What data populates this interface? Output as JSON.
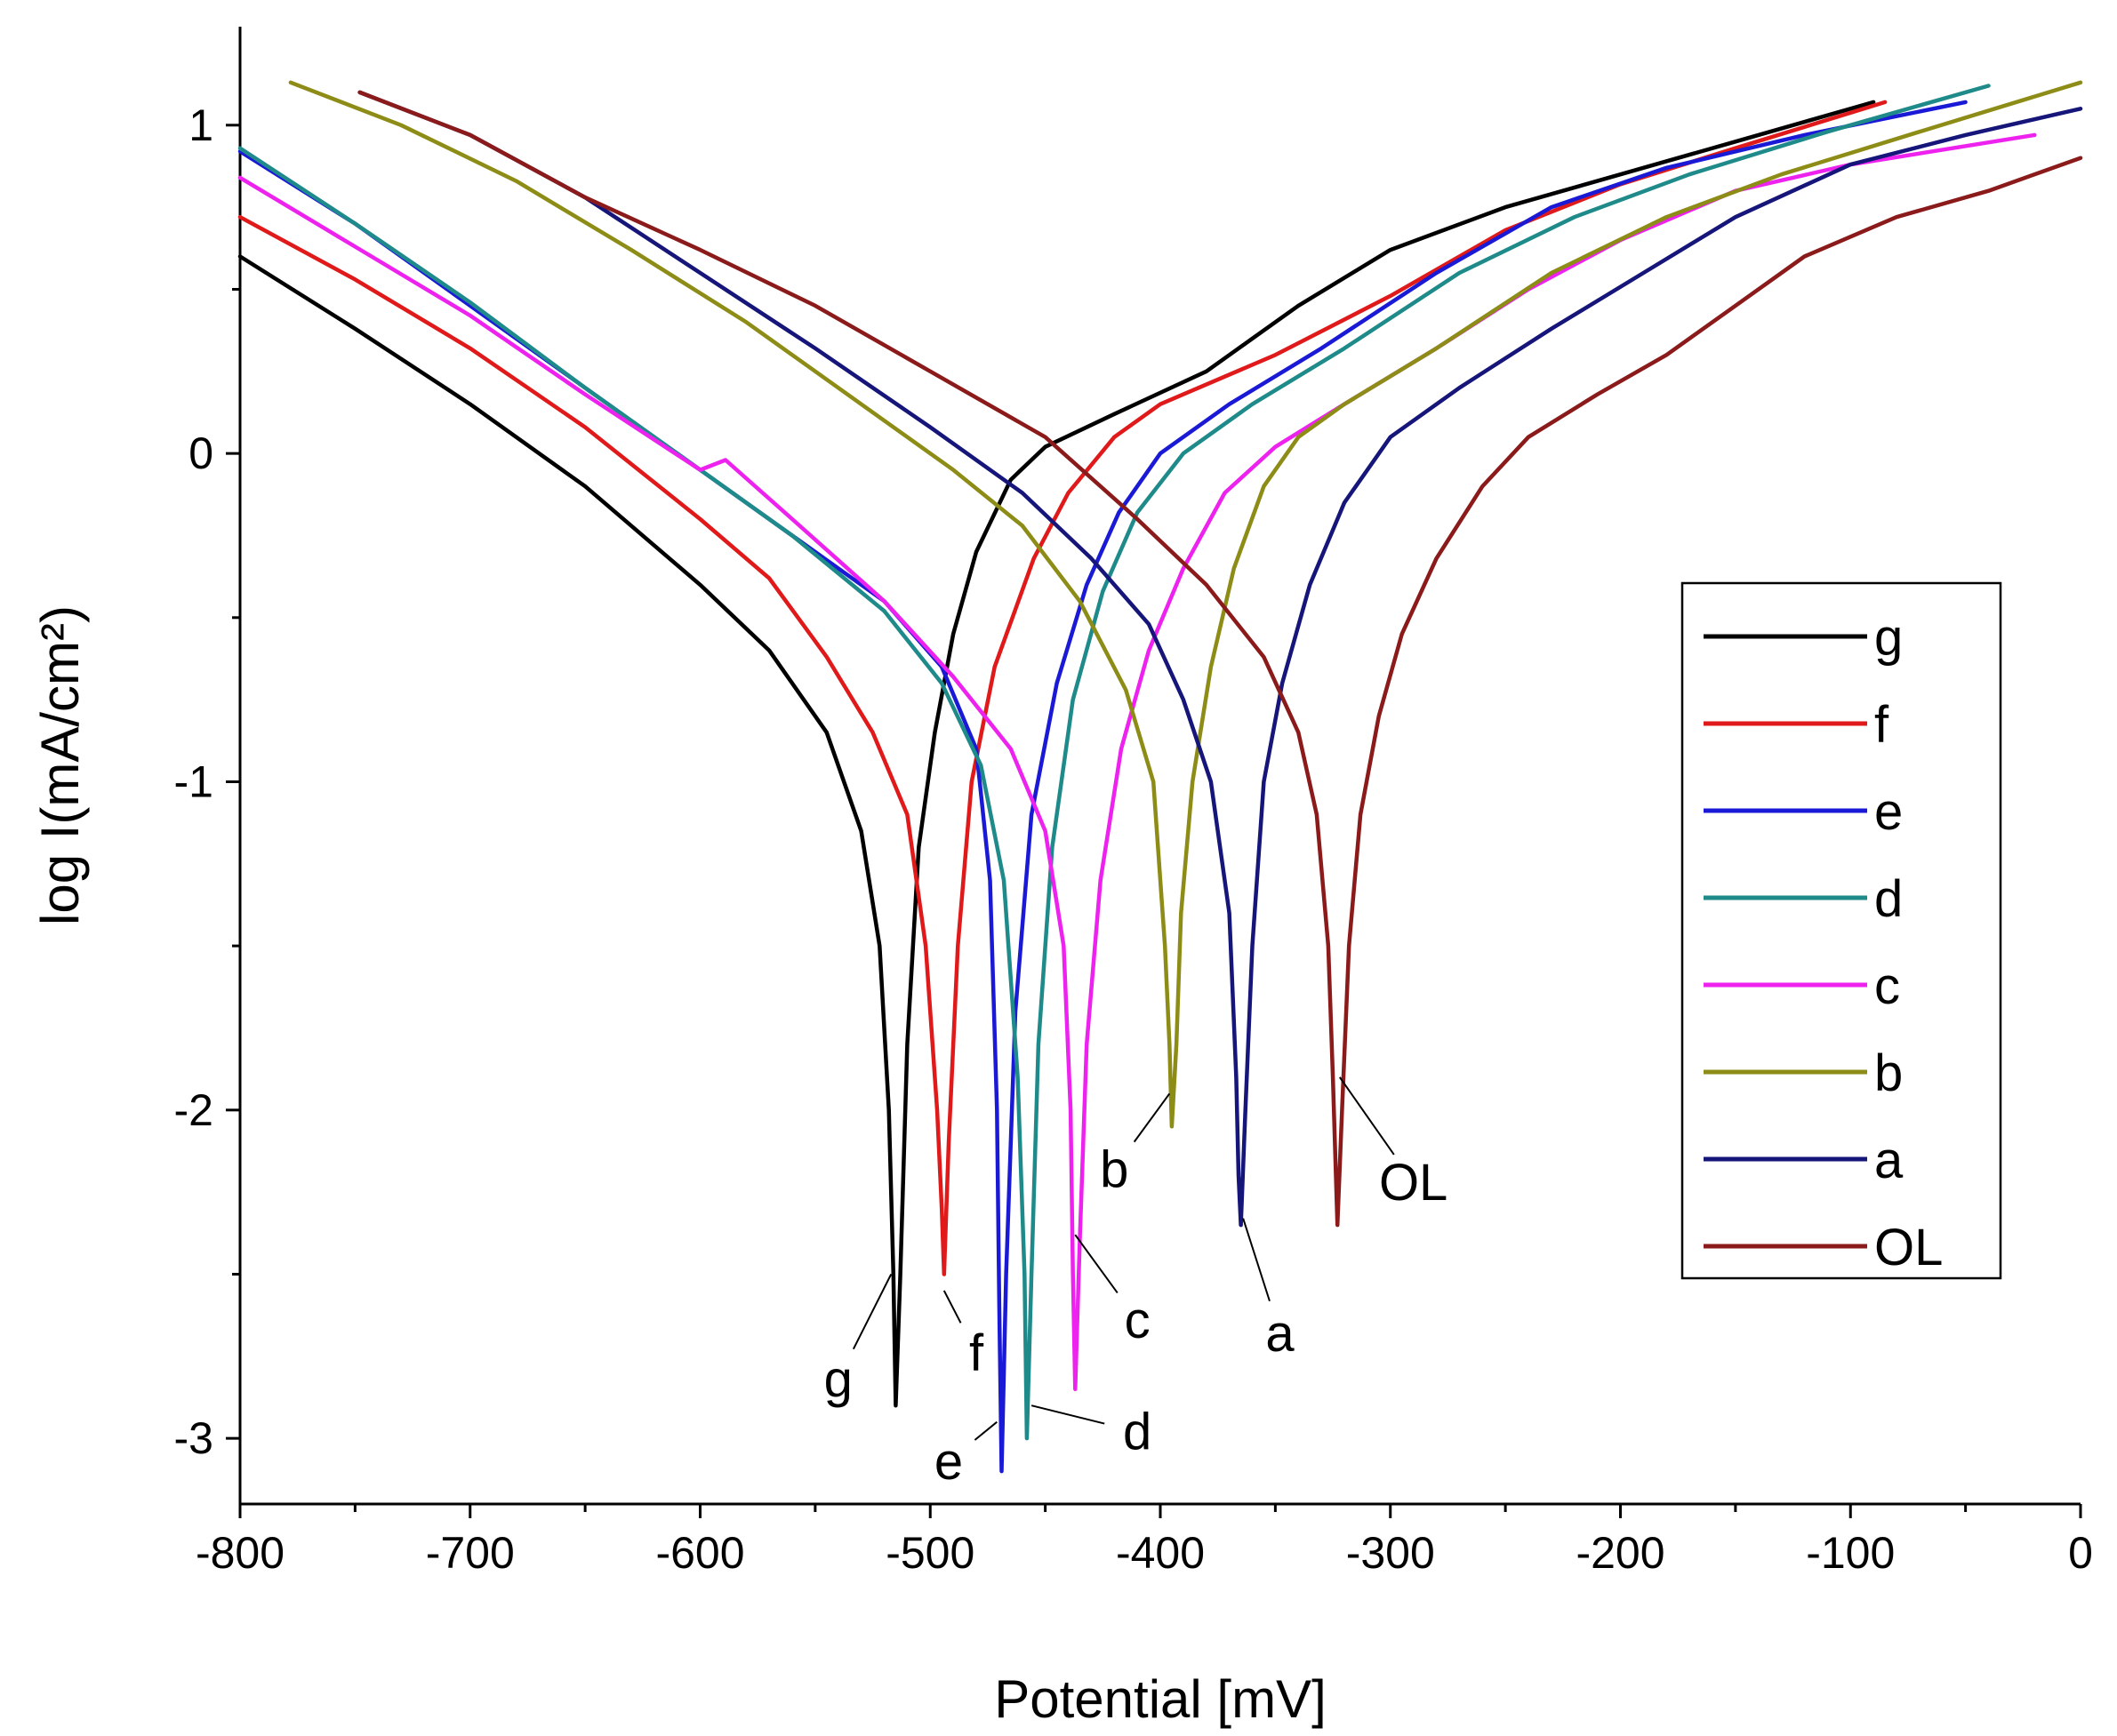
{
  "chart_data": {
    "type": "line",
    "xlabel": "Potential [mV]",
    "ylabel": "log I(mA/cm²)",
    "xlim": [
      -800,
      0
    ],
    "ylim": [
      -3.2,
      1.3
    ],
    "x_ticks": [
      -800,
      -700,
      -600,
      -500,
      -400,
      -300,
      -200,
      -100,
      0
    ],
    "x_tick_labels": [
      "-800",
      "-700",
      "-600",
      "-500",
      "-400",
      "-300",
      "-200",
      "-100",
      "0"
    ],
    "y_ticks": [
      -3,
      -2,
      -1,
      0,
      1
    ],
    "y_tick_labels": [
      "-3",
      "-2",
      "-1",
      "0",
      "1"
    ],
    "grid": false,
    "legend_position": "right",
    "series": [
      {
        "name": "g",
        "color": "#000000",
        "ecorr": -515,
        "min": -2.9,
        "points": [
          [
            -800,
            0.6
          ],
          [
            -750,
            0.38
          ],
          [
            -700,
            0.15
          ],
          [
            -650,
            -0.1
          ],
          [
            -600,
            -0.4
          ],
          [
            -570,
            -0.6
          ],
          [
            -545,
            -0.85
          ],
          [
            -530,
            -1.15
          ],
          [
            -522,
            -1.5
          ],
          [
            -518,
            -2.0
          ],
          [
            -516,
            -2.5
          ],
          [
            -515,
            -2.9
          ],
          [
            -513,
            -2.5
          ],
          [
            -510,
            -1.8
          ],
          [
            -505,
            -1.2
          ],
          [
            -498,
            -0.85
          ],
          [
            -490,
            -0.55
          ],
          [
            -480,
            -0.3
          ],
          [
            -465,
            -0.08
          ],
          [
            -450,
            0.02
          ],
          [
            -420,
            0.12
          ],
          [
            -380,
            0.25
          ],
          [
            -340,
            0.45
          ],
          [
            -300,
            0.62
          ],
          [
            -250,
            0.75
          ],
          [
            -200,
            0.85
          ],
          [
            -150,
            0.95
          ],
          [
            -90,
            1.07
          ]
        ]
      },
      {
        "name": "f",
        "color": "#e01a1a",
        "ecorr": -494,
        "min": -2.5,
        "points": [
          [
            -800,
            0.72
          ],
          [
            -750,
            0.53
          ],
          [
            -700,
            0.32
          ],
          [
            -650,
            0.08
          ],
          [
            -600,
            -0.2
          ],
          [
            -570,
            -0.38
          ],
          [
            -545,
            -0.62
          ],
          [
            -525,
            -0.85
          ],
          [
            -510,
            -1.1
          ],
          [
            -502,
            -1.5
          ],
          [
            -497,
            -2.0
          ],
          [
            -495,
            -2.3
          ],
          [
            -494,
            -2.5
          ],
          [
            -492,
            -2.1
          ],
          [
            -488,
            -1.5
          ],
          [
            -482,
            -1.0
          ],
          [
            -472,
            -0.65
          ],
          [
            -455,
            -0.32
          ],
          [
            -440,
            -0.12
          ],
          [
            -420,
            0.05
          ],
          [
            -400,
            0.15
          ],
          [
            -350,
            0.3
          ],
          [
            -300,
            0.48
          ],
          [
            -250,
            0.68
          ],
          [
            -200,
            0.82
          ],
          [
            -150,
            0.93
          ],
          [
            -85,
            1.07
          ]
        ]
      },
      {
        "name": "e",
        "color": "#1a1ad6",
        "ecorr": -469,
        "min": -3.1,
        "points": [
          [
            -800,
            0.92
          ],
          [
            -750,
            0.7
          ],
          [
            -700,
            0.45
          ],
          [
            -650,
            0.2
          ],
          [
            -600,
            -0.05
          ],
          [
            -560,
            -0.25
          ],
          [
            -520,
            -0.45
          ],
          [
            -495,
            -0.65
          ],
          [
            -480,
            -0.9
          ],
          [
            -474,
            -1.3
          ],
          [
            -471,
            -2.0
          ],
          [
            -470,
            -2.6
          ],
          [
            -469,
            -3.1
          ],
          [
            -467,
            -2.5
          ],
          [
            -463,
            -1.7
          ],
          [
            -456,
            -1.1
          ],
          [
            -445,
            -0.7
          ],
          [
            -432,
            -0.4
          ],
          [
            -418,
            -0.18
          ],
          [
            -400,
            0.0
          ],
          [
            -370,
            0.15
          ],
          [
            -330,
            0.32
          ],
          [
            -280,
            0.55
          ],
          [
            -230,
            0.75
          ],
          [
            -180,
            0.87
          ],
          [
            -120,
            0.97
          ],
          [
            -50,
            1.07
          ]
        ]
      },
      {
        "name": "d",
        "color": "#1e8a8a",
        "ecorr": -458,
        "min": -3.0,
        "points": [
          [
            -800,
            0.93
          ],
          [
            -750,
            0.7
          ],
          [
            -700,
            0.46
          ],
          [
            -650,
            0.2
          ],
          [
            -600,
            -0.05
          ],
          [
            -560,
            -0.25
          ],
          [
            -520,
            -0.48
          ],
          [
            -495,
            -0.7
          ],
          [
            -478,
            -0.95
          ],
          [
            -468,
            -1.3
          ],
          [
            -462,
            -1.9
          ],
          [
            -459,
            -2.5
          ],
          [
            -458,
            -3.0
          ],
          [
            -456,
            -2.5
          ],
          [
            -453,
            -1.8
          ],
          [
            -447,
            -1.2
          ],
          [
            -438,
            -0.75
          ],
          [
            -425,
            -0.42
          ],
          [
            -410,
            -0.18
          ],
          [
            -390,
            0.0
          ],
          [
            -360,
            0.15
          ],
          [
            -320,
            0.32
          ],
          [
            -270,
            0.55
          ],
          [
            -220,
            0.72
          ],
          [
            -170,
            0.85
          ],
          [
            -110,
            0.98
          ],
          [
            -40,
            1.12
          ]
        ]
      },
      {
        "name": "c",
        "color": "#ee22ee",
        "ecorr": -437,
        "min": -2.85,
        "points": [
          [
            -800,
            0.84
          ],
          [
            -750,
            0.63
          ],
          [
            -700,
            0.42
          ],
          [
            -650,
            0.18
          ],
          [
            -600,
            -0.05
          ],
          [
            -589,
            -0.02
          ],
          [
            -560,
            -0.2
          ],
          [
            -520,
            -0.45
          ],
          [
            -490,
            -0.68
          ],
          [
            -465,
            -0.9
          ],
          [
            -450,
            -1.15
          ],
          [
            -442,
            -1.5
          ],
          [
            -439,
            -2.0
          ],
          [
            -438,
            -2.5
          ],
          [
            -437,
            -2.85
          ],
          [
            -435,
            -2.4
          ],
          [
            -432,
            -1.8
          ],
          [
            -426,
            -1.3
          ],
          [
            -417,
            -0.9
          ],
          [
            -405,
            -0.6
          ],
          [
            -390,
            -0.35
          ],
          [
            -372,
            -0.12
          ],
          [
            -350,
            0.02
          ],
          [
            -320,
            0.15
          ],
          [
            -280,
            0.32
          ],
          [
            -240,
            0.5
          ],
          [
            -200,
            0.65
          ],
          [
            -150,
            0.8
          ],
          [
            -100,
            0.88
          ],
          [
            -20,
            0.97
          ]
        ]
      },
      {
        "name": "b",
        "color": "#8c8c16",
        "ecorr": -395,
        "min": -2.05,
        "points": [
          [
            -778,
            1.13
          ],
          [
            -730,
            1.0
          ],
          [
            -680,
            0.83
          ],
          [
            -630,
            0.62
          ],
          [
            -580,
            0.4
          ],
          [
            -530,
            0.15
          ],
          [
            -490,
            -0.05
          ],
          [
            -460,
            -0.22
          ],
          [
            -435,
            -0.45
          ],
          [
            -415,
            -0.72
          ],
          [
            -403,
            -1.0
          ],
          [
            -398,
            -1.5
          ],
          [
            -396,
            -1.8
          ],
          [
            -395,
            -2.05
          ],
          [
            -393,
            -1.8
          ],
          [
            -391,
            -1.4
          ],
          [
            -386,
            -1.0
          ],
          [
            -378,
            -0.65
          ],
          [
            -368,
            -0.35
          ],
          [
            -355,
            -0.1
          ],
          [
            -340,
            0.05
          ],
          [
            -320,
            0.15
          ],
          [
            -280,
            0.32
          ],
          [
            -230,
            0.55
          ],
          [
            -180,
            0.72
          ],
          [
            -130,
            0.85
          ],
          [
            -70,
            0.98
          ],
          [
            0,
            1.13
          ]
        ]
      },
      {
        "name": "a",
        "color": "#15157a",
        "ecorr": -365,
        "min": -2.35,
        "points": [
          [
            -748,
            1.1
          ],
          [
            -700,
            0.97
          ],
          [
            -650,
            0.78
          ],
          [
            -600,
            0.55
          ],
          [
            -550,
            0.32
          ],
          [
            -500,
            0.08
          ],
          [
            -460,
            -0.12
          ],
          [
            -430,
            -0.32
          ],
          [
            -405,
            -0.52
          ],
          [
            -390,
            -0.75
          ],
          [
            -378,
            -1.0
          ],
          [
            -370,
            -1.4
          ],
          [
            -367,
            -1.9
          ],
          [
            -366,
            -2.2
          ],
          [
            -365,
            -2.35
          ],
          [
            -363,
            -2.0
          ],
          [
            -360,
            -1.5
          ],
          [
            -355,
            -1.0
          ],
          [
            -347,
            -0.7
          ],
          [
            -335,
            -0.4
          ],
          [
            -320,
            -0.15
          ],
          [
            -300,
            0.05
          ],
          [
            -270,
            0.2
          ],
          [
            -230,
            0.38
          ],
          [
            -190,
            0.55
          ],
          [
            -150,
            0.72
          ],
          [
            -100,
            0.88
          ],
          [
            -50,
            0.97
          ],
          [
            0,
            1.05
          ]
        ]
      },
      {
        "name": "OL",
        "color": "#8b1a1a",
        "ecorr": -323,
        "min": -2.35,
        "points": [
          [
            -748,
            1.1
          ],
          [
            -700,
            0.97
          ],
          [
            -650,
            0.78
          ],
          [
            -600,
            0.62
          ],
          [
            -550,
            0.45
          ],
          [
            -500,
            0.25
          ],
          [
            -450,
            0.05
          ],
          [
            -410,
            -0.2
          ],
          [
            -380,
            -0.4
          ],
          [
            -355,
            -0.62
          ],
          [
            -340,
            -0.85
          ],
          [
            -332,
            -1.1
          ],
          [
            -327,
            -1.5
          ],
          [
            -325,
            -1.9
          ],
          [
            -323,
            -2.35
          ],
          [
            -321,
            -2.0
          ],
          [
            -318,
            -1.5
          ],
          [
            -313,
            -1.1
          ],
          [
            -305,
            -0.8
          ],
          [
            -295,
            -0.55
          ],
          [
            -280,
            -0.32
          ],
          [
            -260,
            -0.1
          ],
          [
            -240,
            0.05
          ],
          [
            -210,
            0.18
          ],
          [
            -180,
            0.3
          ],
          [
            -150,
            0.45
          ],
          [
            -120,
            0.6
          ],
          [
            -80,
            0.72
          ],
          [
            -40,
            0.8
          ],
          [
            0,
            0.9
          ]
        ]
      }
    ],
    "legend_entries": [
      "g",
      "f",
      "e",
      "d",
      "c",
      "b",
      "a",
      "OL"
    ],
    "annotations": [
      {
        "text": "g",
        "point": [
          -517,
          -2.5
        ],
        "label_at": [
          -540,
          -2.82
        ]
      },
      {
        "text": "f",
        "point": [
          -494,
          -2.55
        ],
        "label_at": [
          -480,
          -2.74
        ]
      },
      {
        "text": "e",
        "point": [
          -471,
          -2.95
        ],
        "label_at": [
          -492,
          -3.07
        ]
      },
      {
        "text": "d",
        "point": [
          -456,
          -2.9
        ],
        "label_at": [
          -410,
          -2.98
        ]
      },
      {
        "text": "c",
        "point": [
          -437,
          -2.38
        ],
        "label_at": [
          -410,
          -2.64
        ]
      },
      {
        "text": "b",
        "point": [
          -396,
          -1.95
        ],
        "label_at": [
          -420,
          -2.18
        ]
      },
      {
        "text": "a",
        "point": [
          -364,
          -2.33
        ],
        "label_at": [
          -348,
          -2.68
        ]
      },
      {
        "text": "OL",
        "point": [
          -322,
          -1.9
        ],
        "label_at": [
          -290,
          -2.22
        ]
      }
    ]
  }
}
